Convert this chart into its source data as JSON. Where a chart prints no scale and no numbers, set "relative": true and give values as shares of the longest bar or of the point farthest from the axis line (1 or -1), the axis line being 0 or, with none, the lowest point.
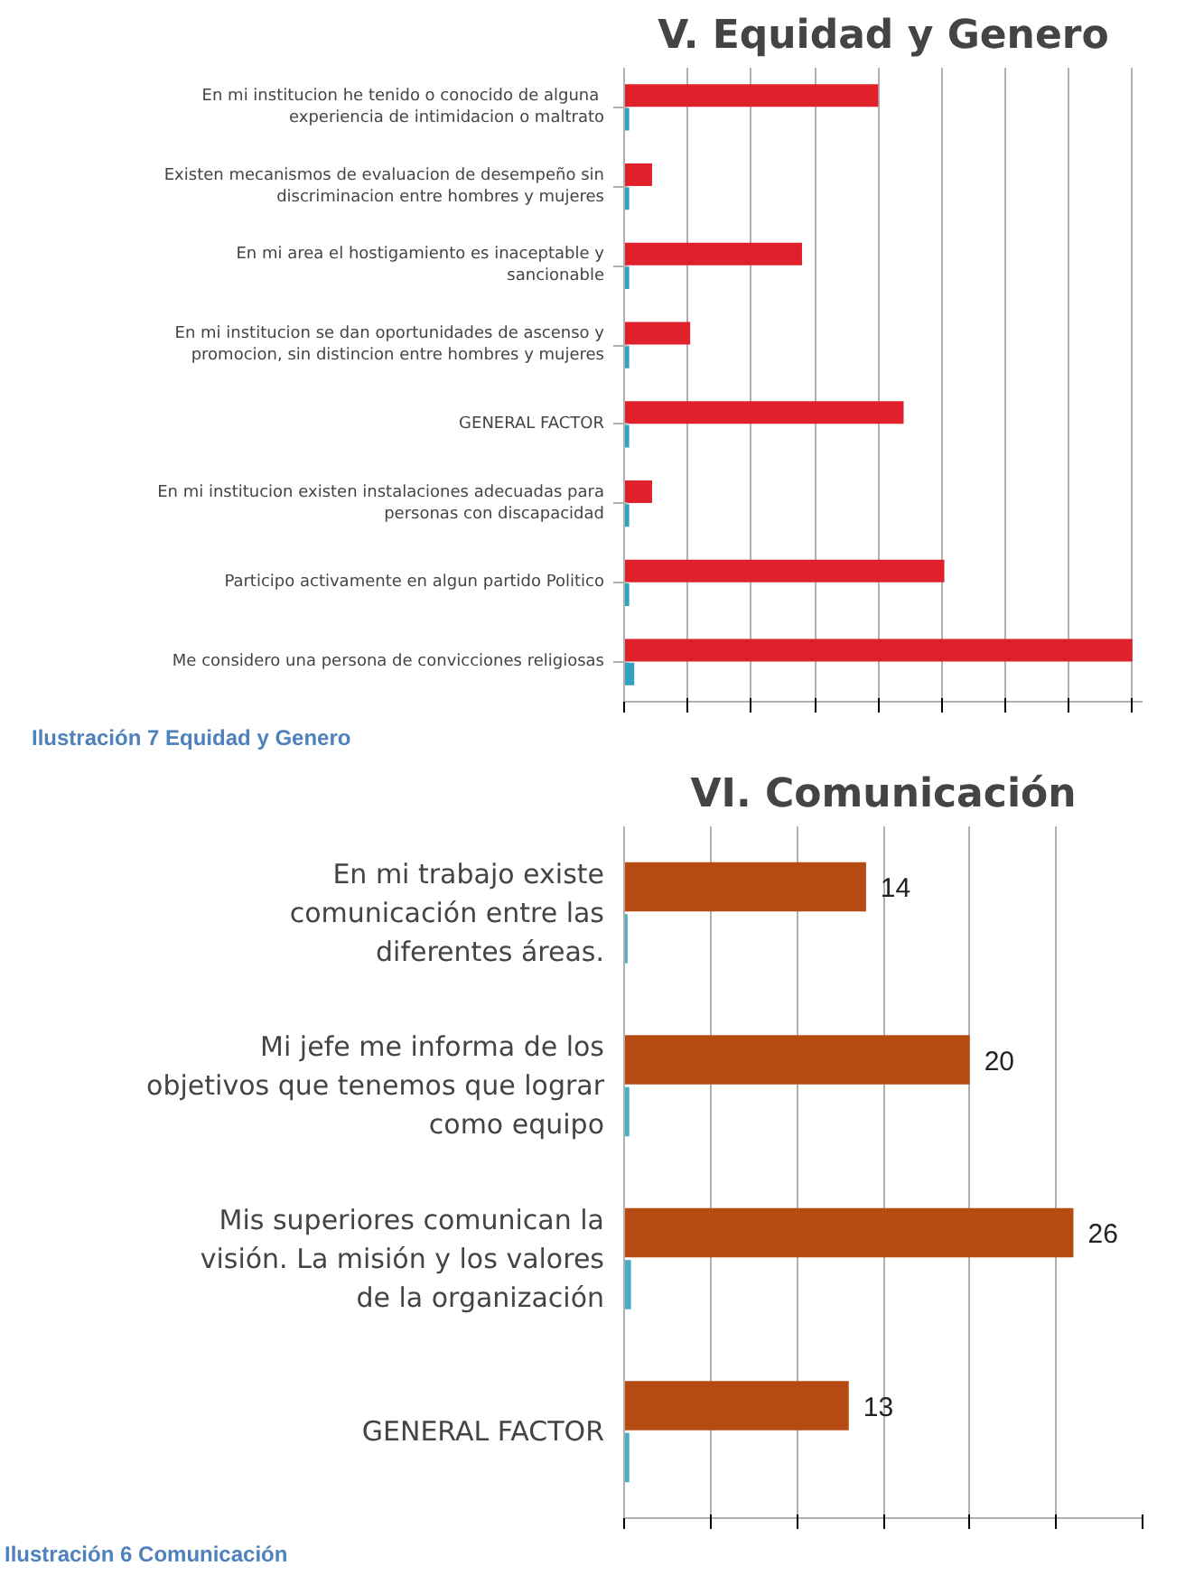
{
  "chart_data": [
    {
      "type": "bar",
      "orientation": "horizontal",
      "relative": true,
      "title": "V. Equidad y Genero",
      "grid": "x",
      "categories": [
        "En mi institucion he  tenido o conocido de alguna experiencia de intimidacion o maltrato",
        "Existen mecanismos de evaluacion de desempeño sin discriminacion entre hombres y mujeres",
        "En mi area el hostigamiento es inaceptable y sancionable",
        "En mi institucion se dan oportunidades de ascenso y promocion, sin distincion entre hombres y mujeres",
        "GENERAL FACTOR",
        "En mi institucion existen instalaciones adecuadas para personas con discapacidad",
        "Participo activamente en algun partido Politico",
        "Me considero una persona de convicciones religiosas"
      ],
      "series": [
        {
          "color": "#e0202a",
          "values": [
            0.5,
            0.055,
            0.35,
            0.13,
            0.55,
            0.055,
            0.63,
            1
          ]
        },
        {
          "color": "#31a3c0",
          "values": [
            0.01,
            0.01,
            0.01,
            0.01,
            0.01,
            0.01,
            0.01,
            0.02
          ]
        }
      ],
      "annotations": [
        "Ilustración 7 Equidad y Genero"
      ]
    },
    {
      "type": "bar",
      "orientation": "horizontal",
      "title": "VI. Comunicación",
      "grid": "x",
      "tick_labels": "y",
      "xlim": [
        0,
        30
      ],
      "xticks": [
        {
          "value": 0,
          "label": null
        },
        {
          "value": 5,
          "label": null
        },
        {
          "value": 10,
          "label": null
        },
        {
          "value": 15,
          "label": null
        },
        {
          "value": 20,
          "label": null
        },
        {
          "value": 25,
          "label": null
        },
        {
          "value": 30,
          "label": null
        }
      ],
      "categories": [
        "En mi trabajo existe comunicación entre las diferentes áreas.",
        "Mi jefe me informa de los objetivos que tenemos que lograr como equipo",
        "Mis superiores comunican la visión. La misión y los valores de la organización",
        "GENERAL FACTOR"
      ],
      "series": [
        {
          "color": "#b54a12",
          "values": [
            14,
            20,
            26,
            13
          ],
          "value_labels": [
            "14",
            "20",
            "26",
            "13"
          ]
        },
        {
          "color": "#4bacc6",
          "values": [
            0.2,
            0.3,
            0.4,
            0.3
          ]
        }
      ],
      "annotations": [
        "Ilustración 6 Comunicación"
      ]
    }
  ]
}
